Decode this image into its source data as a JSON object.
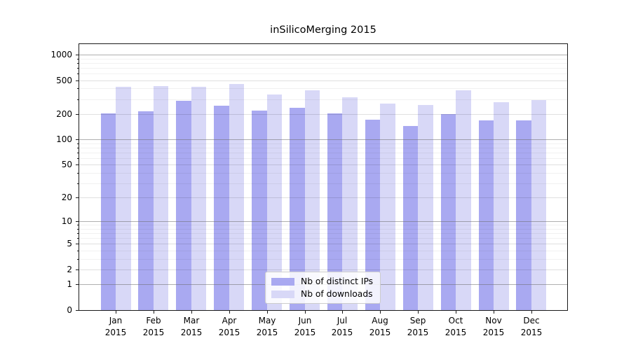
{
  "title": "inSilicoMerging 2015",
  "chart_data": {
    "type": "bar",
    "categories": [
      "Jan",
      "Feb",
      "Mar",
      "Apr",
      "May",
      "Jun",
      "Jul",
      "Aug",
      "Sep",
      "Oct",
      "Nov",
      "Dec"
    ],
    "year_label": "2015",
    "series": [
      {
        "name": "Nb of distinct IPs",
        "color": "#a9a9f1",
        "values": [
          205,
          217,
          285,
          253,
          221,
          236,
          205,
          172,
          145,
          200,
          169,
          169
        ]
      },
      {
        "name": "Nb of downloads",
        "color": "#d8d8f7",
        "values": [
          417,
          426,
          417,
          450,
          339,
          381,
          317,
          264,
          256,
          380,
          276,
          290
        ]
      }
    ],
    "title": "inSilicoMerging 2015",
    "xlabel": "",
    "ylabel": "",
    "yscale": "log1p",
    "yticks": [
      0,
      1,
      2,
      5,
      10,
      20,
      50,
      100,
      200,
      500,
      1000
    ],
    "yticks_minor": [
      3,
      4,
      6,
      7,
      8,
      9,
      30,
      40,
      60,
      70,
      80,
      90,
      300,
      400,
      600,
      700,
      800,
      900
    ],
    "ylim": [
      0,
      1360
    ],
    "grid": true,
    "legend_position": "lower center"
  }
}
